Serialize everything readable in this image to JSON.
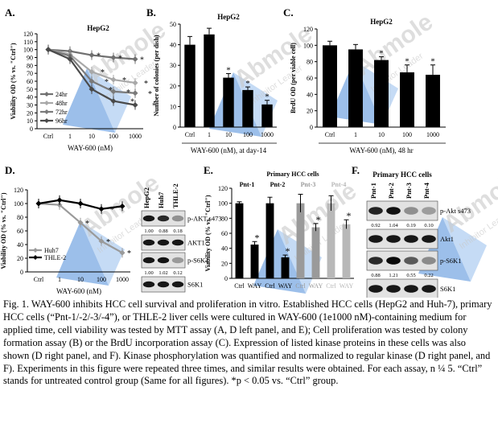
{
  "watermark": {
    "brand": "Abmole",
    "tagline": "Inhibitor Leader"
  },
  "panels": {
    "A": "A.",
    "B": "B.",
    "C": "C.",
    "D": "D.",
    "E": "E.",
    "F": "F."
  },
  "caption": "Fig. 1. WAY-600 inhibits HCC cell survival and proliferation in vitro. Established HCC cells (HepG2 and Huh-7), primary HCC cells (“Pnt-1/-2/-3/-4”), or THLE-2 liver cells were cultured in WAY-600 (1e1000 nM)-containing medium for applied time, cell viability was tested by MTT assay (A, D left panel, and E); Cell proliferation was tested by colony formation assay (B) or the BrdU incorporation assay (C). Expression of listed kinase proteins in these cells was also shown (D right panel, and F). Kinase phosphorylation was quantified and normalized to regular kinase (D right panel, and F). Experiments in this figure were repeated three times, and similar results were obtained. For each assay, n ¼ 5. “Ctrl” stands for untreated control group (Same for all figures). *p < 0.05 vs. “Ctrl” group.",
  "chart_data": [
    {
      "id": "A",
      "type": "line",
      "title": "HepG2",
      "xlabel": "WAY-600 (nM)",
      "ylabel": "Viability OD (% vs. \"Ctrl\")",
      "categories": [
        "Ctrl",
        "1",
        "10",
        "100",
        "1000"
      ],
      "ylim": [
        0,
        120
      ],
      "yticks": [
        0,
        10,
        20,
        30,
        40,
        50,
        60,
        70,
        80,
        90,
        100,
        110,
        120
      ],
      "legend_position": "bottom-left",
      "series": [
        {
          "name": "24hr",
          "color": "#707070",
          "values": [
            100,
            98,
            93,
            90,
            88
          ]
        },
        {
          "name": "48hr",
          "color": "#a8a8a8",
          "values": [
            100,
            94,
            72,
            62,
            58
          ]
        },
        {
          "name": "72hr",
          "color": "#7a7a7a",
          "values": [
            100,
            92,
            60,
            47,
            45
          ]
        },
        {
          "name": "96hr",
          "color": "#4a4a4a",
          "values": [
            100,
            88,
            50,
            35,
            30
          ]
        }
      ]
    },
    {
      "id": "B",
      "type": "bar",
      "title": "HepG2",
      "xlabel": "WAY-600 (nM), at day-14",
      "ylabel": "Number of colonies (per dish)",
      "categories": [
        "Ctrl",
        "1",
        "10",
        "100",
        "1000"
      ],
      "values": [
        40,
        45,
        24,
        18,
        11
      ],
      "errors": [
        4,
        3,
        2,
        1.5,
        2
      ],
      "significant": [
        false,
        false,
        true,
        true,
        true
      ],
      "ylim": [
        0,
        50
      ],
      "yticks": [
        0,
        10,
        20,
        30,
        40,
        50
      ]
    },
    {
      "id": "C",
      "type": "bar",
      "title": "HepG2",
      "xlabel": "WAY-600 (nM), 48 hr",
      "ylabel": "BrdU OD (per viable cell)",
      "categories": [
        "Ctrl",
        "1",
        "10",
        "100",
        "1000"
      ],
      "values": [
        100,
        95,
        82,
        67,
        64
      ],
      "errors": [
        5,
        6,
        4,
        9,
        12
      ],
      "significant": [
        false,
        false,
        true,
        true,
        true
      ],
      "ylim": [
        0,
        120
      ],
      "yticks": [
        0,
        20,
        40,
        60,
        80,
        100,
        120
      ]
    },
    {
      "id": "D",
      "type": "line",
      "xlabel": "WAY-600 (nM)",
      "ylabel": "Viability OD (% vs. \"Ctrl\")",
      "categories": [
        "Ctrl",
        "1",
        "10",
        "100",
        "1000"
      ],
      "ylim": [
        0,
        120
      ],
      "yticks": [
        0,
        20,
        40,
        60,
        80,
        100,
        120
      ],
      "legend_position": "bottom-left",
      "series": [
        {
          "name": "Huh7",
          "color": "#9a9a9a",
          "values": [
            100,
            98,
            72,
            45,
            28
          ]
        },
        {
          "name": "THLE-2",
          "color": "#000000",
          "values": [
            100,
            105,
            100,
            92,
            96
          ]
        }
      ]
    },
    {
      "id": "E",
      "type": "bar",
      "title": "Primary HCC cells",
      "ylabel": "Viability OD (% vs. \"Ctrl\")",
      "groups": [
        {
          "label": "Pnt-1",
          "color": "#000000",
          "bars": [
            {
              "label": "Ctrl",
              "value": 100,
              "error": 2
            },
            {
              "label": "WAY",
              "value": 45,
              "error": 4,
              "sig": true
            }
          ]
        },
        {
          "label": "Pnt-2",
          "color": "#000000",
          "bars": [
            {
              "label": "Ctrl",
              "value": 100,
              "error": 8
            },
            {
              "label": "WAY",
              "value": 28,
              "error": 3,
              "sig": true
            }
          ]
        },
        {
          "label": "Pnt-3",
          "color": "#9a9a9a",
          "bars": [
            {
              "label": "Ctrl",
              "value": 100,
              "error": 12
            },
            {
              "label": "WAY",
              "value": 68,
              "error": 5,
              "sig": true
            }
          ]
        },
        {
          "label": "Pnt-4",
          "color": "#b8b8b8",
          "bars": [
            {
              "label": "Ctrl",
              "value": 100,
              "error": 10
            },
            {
              "label": "WAY",
              "value": 72,
              "error": 6,
              "sig": true
            }
          ]
        }
      ],
      "ylim": [
        0,
        120
      ],
      "yticks": [
        0,
        20,
        40,
        60,
        80,
        100,
        120
      ]
    }
  ],
  "blot_D": {
    "lanes": [
      "HepG2",
      "Huh7",
      "THLE-2"
    ],
    "rows": [
      {
        "label": "p-AKT s473",
        "quant": [
          "1.00",
          "0.88",
          "0.18"
        ]
      },
      {
        "label": "AKT1",
        "quant": []
      },
      {
        "label": "p-S6K1",
        "quant": [
          "1.00",
          "1.02",
          "0.12"
        ]
      },
      {
        "label": "S6K1",
        "quant": []
      }
    ]
  },
  "blot_F": {
    "title": "Primary HCC cells",
    "lanes": [
      "Pnt-1",
      "Pnt-2",
      "Pnt-3",
      "Pnt-4"
    ],
    "rows": [
      {
        "label": "p-Akt s473",
        "quant": [
          "0.92",
          "1.04",
          "0.19",
          "0.10"
        ]
      },
      {
        "label": "Akt1",
        "quant": []
      },
      {
        "label": "p-S6K1",
        "quant": [
          "0.88",
          "1.21",
          "0.55",
          "0.22"
        ]
      },
      {
        "label": "S6K1",
        "quant": []
      }
    ]
  }
}
